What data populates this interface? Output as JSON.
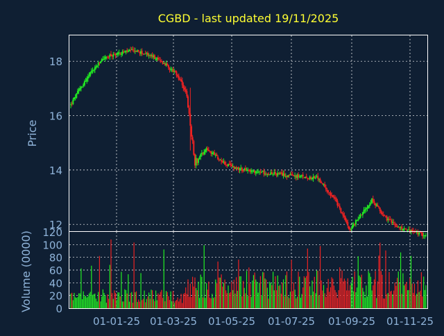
{
  "colors": {
    "background": "#0f1f33",
    "frame": "#ffffff",
    "grid": "#ffffff",
    "title": "#ffff33",
    "axis_text": "#8fb3d9",
    "up": "#22ee22",
    "down": "#ee2222"
  },
  "chart_data": [
    {
      "type": "candlestick",
      "title": "CGBD - last updated 19/11/2025",
      "ylabel": "Price",
      "ylim": [
        11.75,
        18.95
      ],
      "yticks": [
        12,
        14,
        16,
        18
      ],
      "ytick_labels": [
        "12",
        "14",
        "16",
        "18"
      ],
      "xticks": [
        "01-01-25",
        "01-03-25",
        "01-05-25",
        "01-07-25",
        "01-09-25",
        "01-11-25"
      ],
      "grid": true,
      "price_keyframes": {
        "days": [
          0,
          8,
          18,
          28,
          42,
          55,
          70,
          82,
          92,
          100,
          108,
          118,
          135,
          150,
          170,
          190,
          215,
          230,
          243,
          253,
          262,
          275,
          285,
          300,
          308
        ],
        "close": [
          16.4,
          17.0,
          17.6,
          18.1,
          18.3,
          18.4,
          18.2,
          17.9,
          17.5,
          16.9,
          14.3,
          14.8,
          14.2,
          14.0,
          13.9,
          13.8,
          13.7,
          12.9,
          11.8,
          12.4,
          12.9,
          12.2,
          11.9,
          11.7,
          11.6
        ]
      }
    },
    {
      "type": "bar",
      "ylabel": "Volume (0000)",
      "ylim": [
        0,
        120
      ],
      "yticks": [
        0,
        20,
        40,
        60,
        80,
        100,
        120
      ],
      "ytick_labels": [
        "0",
        "20",
        "40",
        "60",
        "80",
        "100",
        "120"
      ],
      "grid": true
    }
  ]
}
